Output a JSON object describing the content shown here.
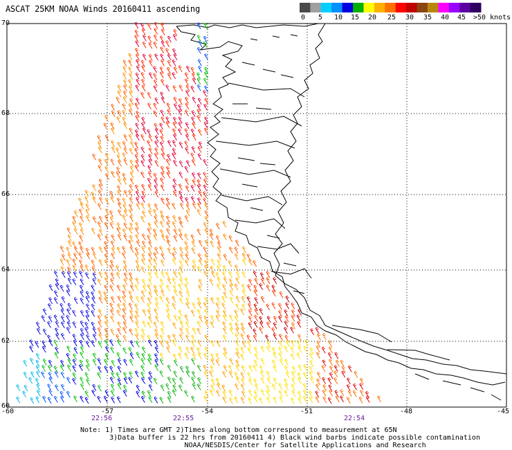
{
  "title": "ASCAT 25KM NOAA Winds 20160411 ascending",
  "scale": {
    "labels": [
      "0",
      "5",
      "10",
      "15",
      "20",
      "25",
      "30",
      "35",
      "40",
      "45",
      ">50 knots"
    ],
    "colors": [
      "#4a4a4a",
      "#a0a0a0",
      "#00d0ff",
      "#0090ff",
      "#0000e0",
      "#00b000",
      "#ffff00",
      "#ffb000",
      "#ff7000",
      "#ff0000",
      "#c00000",
      "#8b4513",
      "#b8860b",
      "#ff00ff",
      "#9a00ff",
      "#5a00a0",
      "#300060"
    ]
  },
  "lat_labels": [
    "70",
    "68",
    "66",
    "64",
    "62",
    "60"
  ],
  "lon_labels": [
    "-60",
    "-57",
    "-54",
    "-51",
    "-48",
    "-45"
  ],
  "time_labels": [
    "22:56",
    "22:55",
    "22:54"
  ],
  "notes": [
    "Note: 1) Times are GMT 2)Times along bottom correspond to measurement at 65N",
    "       3)Data buffer is 22 hrs from 20160411 4) Black wind barbs indicate possible contamination",
    "                         NOAA/NESDIS/Center for Satellite Applications and Research"
  ]
}
